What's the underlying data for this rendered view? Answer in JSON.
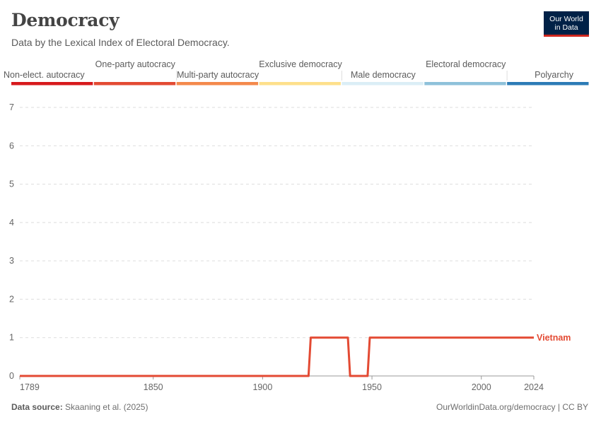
{
  "header": {
    "title": "Democracy",
    "subtitle": "Data by the Lexical Index of Electoral Democracy."
  },
  "logo": {
    "line1": "Our World",
    "line2": "in Data"
  },
  "footer": {
    "source_label": "Data source:",
    "source_text": "Skaaning et al. (2025)",
    "url": "OurWorldinData.org/democracy | CC BY"
  },
  "chart_data": {
    "type": "line",
    "x_ticks": [
      1789,
      1850,
      1900,
      1950,
      2000,
      2024
    ],
    "y_ticks": [
      0,
      1,
      2,
      3,
      4,
      5,
      6,
      7
    ],
    "xlim": [
      1789,
      2024
    ],
    "ylim": [
      0,
      7
    ],
    "grid": "horizontal",
    "legend": [
      {
        "label": "Non-elect. autocracy",
        "color": "#d7191c"
      },
      {
        "label": "One-party autocracy",
        "color": "#e34a33"
      },
      {
        "label": "Multi-party autocracy",
        "color": "#f4894b"
      },
      {
        "label": "Exclusive democracy",
        "color": "#fee08b"
      },
      {
        "label": "Male democracy",
        "color": "#dbeef6"
      },
      {
        "label": "Electoral democracy",
        "color": "#8ec1da"
      },
      {
        "label": "Polyarchy",
        "color": "#2c7bb6"
      }
    ],
    "series": [
      {
        "name": "Vietnam",
        "color": "#e34a33",
        "points": [
          [
            1789,
            0
          ],
          [
            1921,
            0
          ],
          [
            1922,
            1
          ],
          [
            1939,
            1
          ],
          [
            1940,
            0
          ],
          [
            1948,
            0
          ],
          [
            1949,
            1
          ],
          [
            1953,
            1
          ],
          [
            2024,
            1
          ]
        ]
      }
    ]
  }
}
